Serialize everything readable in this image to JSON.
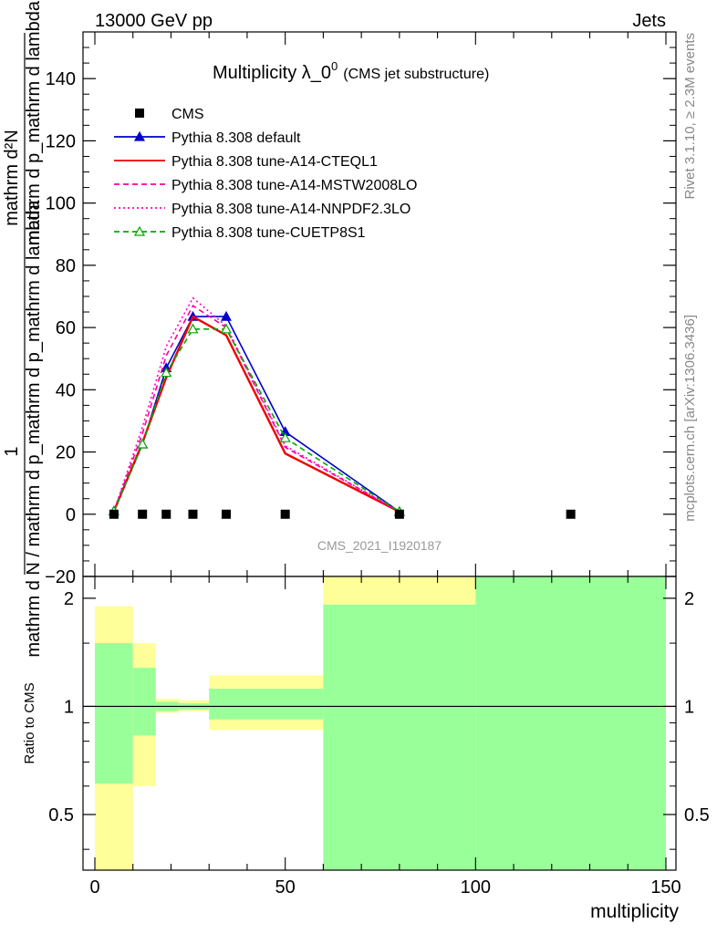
{
  "header": {
    "left": "13000 GeV pp",
    "right": "Jets",
    "side_rivet": "Rivet 3.1.10, ≥ 2.3M events",
    "side_mcplots": "mcplots.cern.ch [arXiv:1306.3436]"
  },
  "chart_data": [
    {
      "type": "line",
      "title": "Multiplicity λ_0",
      "title_superscript": "0",
      "subtitle": "(CMS jet substructure)",
      "watermark": "CMS_2021_I1920187",
      "ylabel_numerator": "mathrm d²N",
      "ylabel_numerator_1": "1",
      "ylabel_main": "mathrm d N / mathrm d p_mathrm d p_mathrm d lambda",
      "ylabel_line2": "mathrm d p_mathrm d lambda",
      "ylim": [
        -20,
        155
      ],
      "yticks": [
        -20,
        0,
        20,
        40,
        60,
        80,
        100,
        120,
        140
      ],
      "xlim": [
        -5,
        150
      ],
      "legend_placement": "top-left",
      "cms": {
        "name": "CMS",
        "x": [
          5,
          12.5,
          18.75,
          25.75,
          34.5,
          50,
          80,
          125
        ],
        "y": [
          0,
          0,
          0,
          0,
          0,
          0,
          0,
          0
        ]
      },
      "series": [
        {
          "name": "Pythia 8.308 default",
          "color": "#0000cc",
          "style": "solid",
          "marker": "triangle-filled",
          "x": [
            5,
            12.5,
            18.75,
            25.75,
            34.5,
            50,
            80
          ],
          "y": [
            1.0,
            22.5,
            47.0,
            63.5,
            63.5,
            26.5,
            0.8
          ]
        },
        {
          "name": "Pythia 8.308 tune-A14-CTEQL1",
          "color": "#ee0000",
          "style": "solid",
          "marker": "none",
          "x": [
            5,
            12.5,
            18.75,
            25.75,
            34.5,
            50,
            80
          ],
          "y": [
            1.0,
            23.0,
            44.0,
            63.5,
            57.5,
            19.5,
            0.8
          ]
        },
        {
          "name": "Pythia 8.308 tune-A14-MSTW2008LO",
          "color": "#ff0099",
          "style": "dashed",
          "marker": "none",
          "x": [
            5,
            12.5,
            18.75,
            25.75,
            34.5,
            50,
            80
          ],
          "y": [
            1.0,
            26.0,
            51.0,
            67.0,
            60.0,
            21.5,
            0.8
          ]
        },
        {
          "name": "Pythia 8.308 tune-A14-NNPDF2.3LO",
          "color": "#ff00cc",
          "style": "dotted",
          "marker": "none",
          "x": [
            5,
            12.5,
            18.75,
            25.75,
            34.5,
            50,
            80
          ],
          "y": [
            1.0,
            28.0,
            54.0,
            69.5,
            60.5,
            22.0,
            0.8
          ]
        },
        {
          "name": "Pythia 8.308 tune-CUETP8S1",
          "color": "#00aa00",
          "style": "dashed",
          "marker": "triangle-open",
          "x": [
            5,
            12.5,
            18.75,
            25.75,
            34.5,
            50,
            80
          ],
          "y": [
            1.0,
            22.5,
            45.5,
            59.5,
            59.5,
            24.5,
            0.8
          ]
        }
      ]
    },
    {
      "type": "area",
      "ylabel": "Ratio to CMS",
      "xlabel": "multiplicity",
      "scale": "log",
      "ylim": [
        0.35,
        2.3
      ],
      "yticks": [
        0.5,
        1,
        2
      ],
      "xticks": [
        0,
        50,
        100,
        150
      ],
      "xlim": [
        -5,
        150
      ],
      "reference_line": 1,
      "bands": [
        {
          "x0": 0,
          "x1": 10,
          "yellow": [
            0.3,
            1.9
          ],
          "green": [
            0.61,
            1.5
          ]
        },
        {
          "x0": 10,
          "x1": 16,
          "yellow": [
            0.6,
            1.5
          ],
          "green": [
            0.83,
            1.28
          ]
        },
        {
          "x0": 16,
          "x1": 22,
          "yellow": [
            0.96,
            1.05
          ],
          "green": [
            0.97,
            1.03
          ]
        },
        {
          "x0": 22,
          "x1": 30,
          "yellow": [
            0.97,
            1.04
          ],
          "green": [
            0.98,
            1.02
          ]
        },
        {
          "x0": 30,
          "x1": 60,
          "yellow": [
            0.86,
            1.22
          ],
          "green": [
            0.92,
            1.12
          ]
        },
        {
          "x0": 60,
          "x1": 100,
          "yellow": [
            0.3,
            2.4
          ],
          "green": [
            0.3,
            1.92
          ]
        },
        {
          "x0": 100,
          "x1": 150,
          "yellow": [
            0.3,
            2.4
          ],
          "green": [
            0.3,
            2.4
          ]
        }
      ]
    }
  ]
}
